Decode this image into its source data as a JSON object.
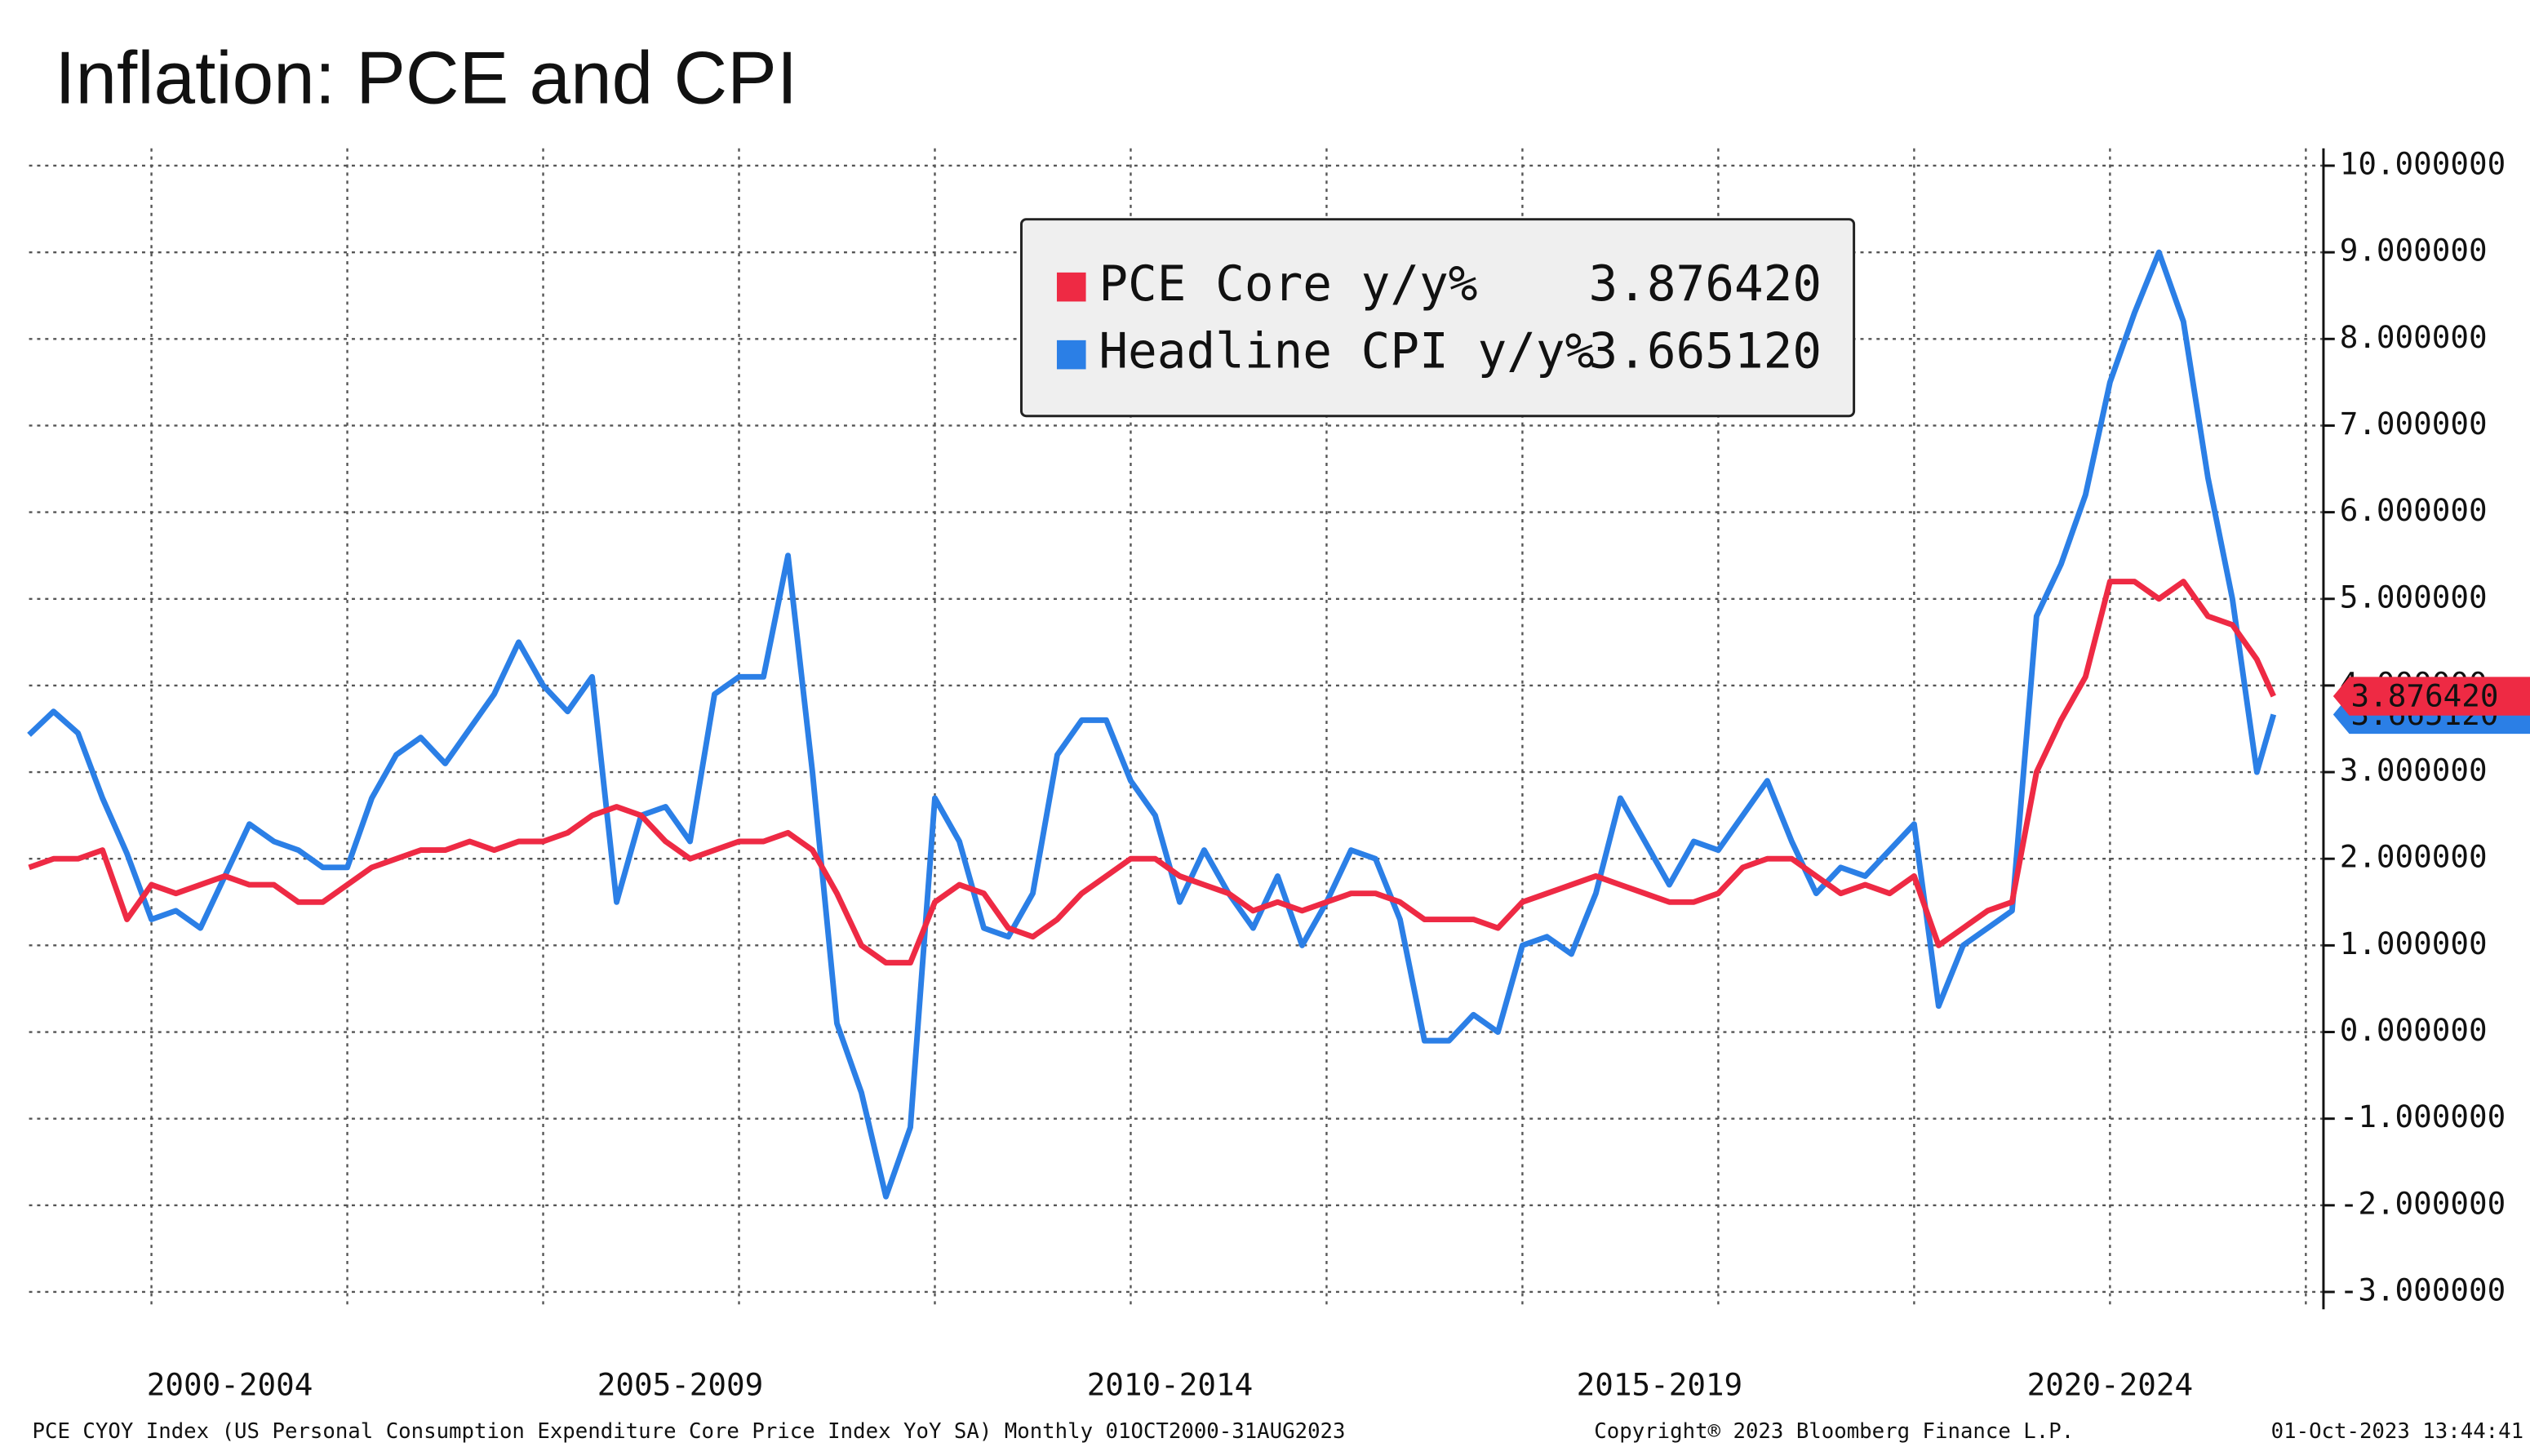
{
  "chart_data": {
    "type": "line",
    "title": "Inflation: PCE and CPI",
    "footnote": "PCE CYOY Index (US Personal Consumption Expenditure Core Price Index YoY SA)  Monthly 01OCT2000-31AUG2023",
    "copyright": "Copyright® 2023 Bloomberg Finance L.P.",
    "timestamp": "01-Oct-2023 13:44:41",
    "x": [
      2000.75,
      2001,
      2001.25,
      2001.5,
      2001.75,
      2002,
      2002.25,
      2002.5,
      2002.75,
      2003,
      2003.25,
      2003.5,
      2003.75,
      2004,
      2004.25,
      2004.5,
      2004.75,
      2005,
      2005.25,
      2005.5,
      2005.75,
      2006,
      2006.25,
      2006.5,
      2006.75,
      2007,
      2007.25,
      2007.5,
      2007.75,
      2008,
      2008.25,
      2008.5,
      2008.75,
      2009,
      2009.25,
      2009.5,
      2009.75,
      2010,
      2010.25,
      2010.5,
      2010.75,
      2011,
      2011.25,
      2011.5,
      2011.75,
      2012,
      2012.25,
      2012.5,
      2012.75,
      2013,
      2013.25,
      2013.5,
      2013.75,
      2014,
      2014.25,
      2014.5,
      2014.75,
      2015,
      2015.25,
      2015.5,
      2015.75,
      2016,
      2016.25,
      2016.5,
      2016.75,
      2017,
      2017.25,
      2017.5,
      2017.75,
      2018,
      2018.25,
      2018.5,
      2018.75,
      2019,
      2019.25,
      2019.5,
      2019.75,
      2020,
      2020.25,
      2020.5,
      2020.75,
      2021,
      2021.25,
      2021.5,
      2021.75,
      2022,
      2022.25,
      2022.5,
      2022.75,
      2023,
      2023.25,
      2023.5,
      2023.67
    ],
    "series": [
      {
        "name": "PCE Core y/y%",
        "color": "#ee2a44",
        "last_label": "3.876420",
        "values": [
          1.9,
          2.0,
          2.0,
          2.1,
          1.3,
          1.7,
          1.6,
          1.7,
          1.8,
          1.7,
          1.7,
          1.5,
          1.5,
          1.7,
          1.9,
          2.0,
          2.1,
          2.1,
          2.2,
          2.1,
          2.2,
          2.2,
          2.3,
          2.5,
          2.6,
          2.5,
          2.2,
          2.0,
          2.1,
          2.2,
          2.2,
          2.3,
          2.1,
          1.6,
          1.0,
          0.8,
          0.8,
          1.5,
          1.7,
          1.6,
          1.2,
          1.1,
          1.3,
          1.6,
          1.8,
          2.0,
          2.0,
          1.8,
          1.7,
          1.6,
          1.4,
          1.5,
          1.4,
          1.5,
          1.6,
          1.6,
          1.5,
          1.3,
          1.3,
          1.3,
          1.2,
          1.5,
          1.6,
          1.7,
          1.8,
          1.7,
          1.6,
          1.5,
          1.5,
          1.6,
          1.9,
          2.0,
          2.0,
          1.8,
          1.6,
          1.7,
          1.6,
          1.8,
          1.0,
          1.2,
          1.4,
          1.5,
          3.0,
          3.6,
          4.1,
          5.2,
          5.2,
          5.0,
          5.2,
          4.8,
          4.7,
          4.3,
          3.87642
        ]
      },
      {
        "name": "Headline CPI y/y%",
        "color": "#2b7fe6",
        "last_label": "3.665120",
        "values": [
          3.43,
          3.7,
          3.45,
          2.7,
          2.06,
          1.3,
          1.4,
          1.2,
          1.8,
          2.4,
          2.2,
          2.1,
          1.9,
          1.9,
          2.7,
          3.2,
          3.4,
          3.1,
          3.5,
          3.9,
          4.5,
          4.0,
          3.7,
          4.1,
          1.5,
          2.5,
          2.6,
          2.2,
          3.9,
          4.1,
          4.1,
          5.5,
          3.0,
          0.1,
          -0.7,
          -1.9,
          -1.1,
          2.7,
          2.2,
          1.2,
          1.1,
          1.6,
          3.2,
          3.6,
          3.6,
          2.9,
          2.5,
          1.5,
          2.1,
          1.6,
          1.2,
          1.8,
          1.0,
          1.5,
          2.1,
          2.0,
          1.3,
          -0.1,
          -0.1,
          0.2,
          0.0,
          1.0,
          1.1,
          0.9,
          1.6,
          2.7,
          2.2,
          1.7,
          2.2,
          2.1,
          2.5,
          2.9,
          2.2,
          1.6,
          1.9,
          1.8,
          2.1,
          2.4,
          0.3,
          1.0,
          1.2,
          1.4,
          4.8,
          5.4,
          6.2,
          7.5,
          8.3,
          9.0,
          8.2,
          6.4,
          5.0,
          3.0,
          3.66512
        ]
      }
    ],
    "xlim": [
      2000.75,
      2024.18
    ],
    "xticks": [
      {
        "value": 2002.8,
        "label": "2000-2004"
      },
      {
        "value": 2007.4,
        "label": "2005-2009"
      },
      {
        "value": 2012.4,
        "label": "2010-2014"
      },
      {
        "value": 2017.4,
        "label": "2015-2019"
      },
      {
        "value": 2022.0,
        "label": "2020-2024"
      }
    ],
    "xgrid": [
      2002,
      2004,
      2006,
      2008,
      2010,
      2012,
      2014,
      2016,
      2018,
      2020,
      2022,
      2024
    ],
    "ylim": [
      -3.2,
      10.2
    ],
    "yticks": [
      {
        "value": 10,
        "label": "10.000000"
      },
      {
        "value": 9,
        "label": "9.000000"
      },
      {
        "value": 8,
        "label": "8.000000"
      },
      {
        "value": 7,
        "label": "7.000000"
      },
      {
        "value": 6,
        "label": "6.000000"
      },
      {
        "value": 5,
        "label": "5.000000"
      },
      {
        "value": 4,
        "label": "4.000000"
      },
      {
        "value": 3,
        "label": "3.000000"
      },
      {
        "value": 2,
        "label": "2.000000"
      },
      {
        "value": 1,
        "label": "1.000000"
      },
      {
        "value": 0,
        "label": "0.000000"
      },
      {
        "value": -1,
        "label": "-1.000000"
      },
      {
        "value": -2,
        "label": "-2.000000"
      },
      {
        "value": -3,
        "label": "-3.000000"
      }
    ],
    "y_axis_side": "right",
    "grid": true,
    "legend": "top center"
  }
}
